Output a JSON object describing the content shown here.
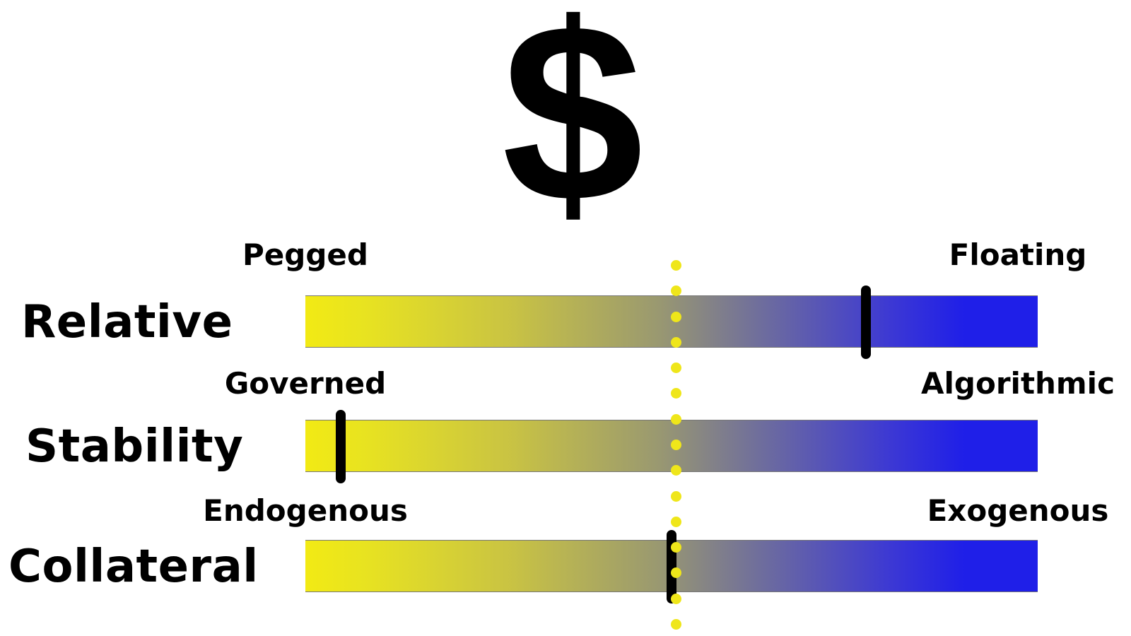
{
  "symbol": "$",
  "colors": {
    "left_end": "#f2ea14",
    "right_end": "#1f1fe8",
    "marker": "#000000",
    "midline": "#efe61a"
  },
  "rows": [
    {
      "label": "Relative",
      "left_label": "Pegged",
      "right_label": "Floating",
      "position": 0.765
    },
    {
      "label": "Stability",
      "left_label": "Governed",
      "right_label": "Algorithmic",
      "position": 0.048
    },
    {
      "label": "Collateral",
      "left_label": "Endogenous",
      "right_label": "Exogenous",
      "position": 0.5
    }
  ]
}
